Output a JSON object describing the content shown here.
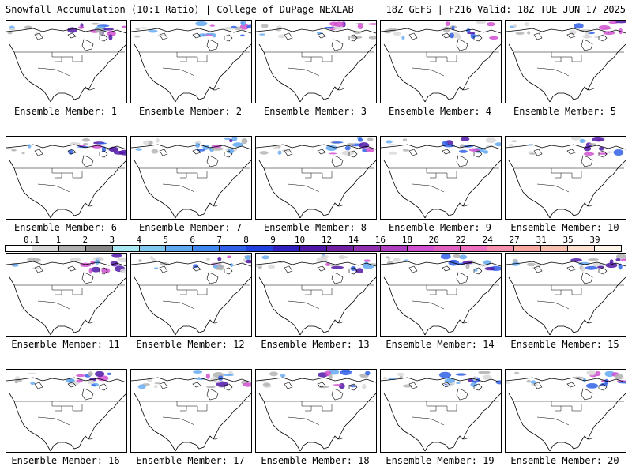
{
  "header": {
    "title": "Snowfall Accumulation (10:1 Ratio) | College of DuPage NEXLAB",
    "run_info": "18Z GEFS | F216 Valid: 18Z TUE JUN 17 2025"
  },
  "caption_prefix": "Ensemble Member: ",
  "members": [
    "1",
    "2",
    "3",
    "4",
    "5",
    "6",
    "7",
    "8",
    "9",
    "10",
    "11",
    "12",
    "13",
    "14",
    "15",
    "16",
    "17",
    "18",
    "19",
    "20"
  ],
  "color_scale": {
    "labels": [
      "0.1",
      "1",
      "2",
      "3",
      "4",
      "5",
      "6",
      "7",
      "8",
      "9",
      "10",
      "12",
      "14",
      "16",
      "18",
      "20",
      "22",
      "24",
      "27",
      "31",
      "35",
      "39"
    ],
    "colors": [
      "#ffffff",
      "#d8d8d8",
      "#b0b0b0",
      "#888888",
      "#a8e8f0",
      "#80c8f0",
      "#60a8f0",
      "#4088f0",
      "#3060e8",
      "#2040e0",
      "#3020c0",
      "#5018a8",
      "#7020a0",
      "#9030b0",
      "#b040c0",
      "#d050d0",
      "#e060c0",
      "#f070c0",
      "#f890b0",
      "#f8a8a0",
      "#f8c0b0",
      "#fce0d0",
      "#fff4e8"
    ]
  }
}
